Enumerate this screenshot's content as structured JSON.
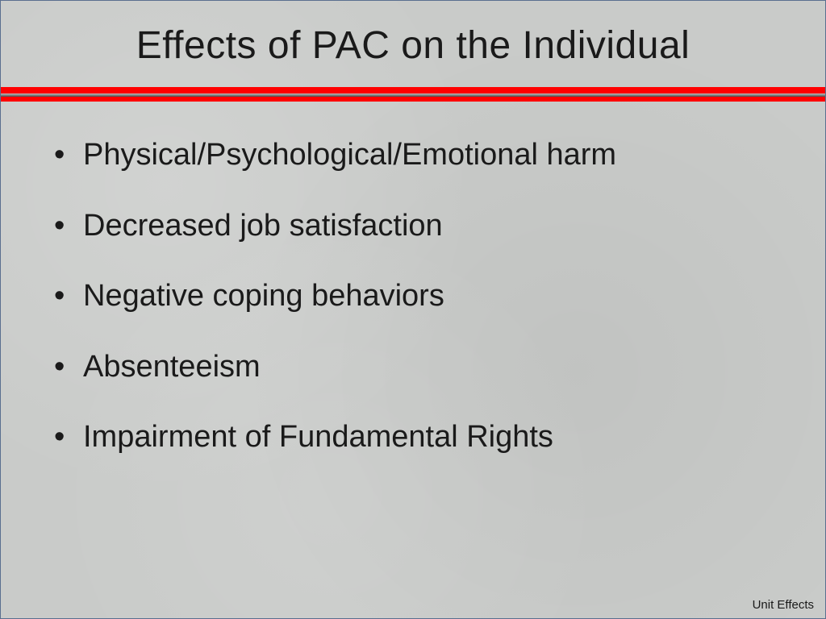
{
  "slide": {
    "title": "Effects of PAC on the Individual",
    "title_fontsize": 48,
    "title_color": "#1a1a1a",
    "background_color": "#c9cbc9",
    "border_color": "#5a6f8f",
    "divider": {
      "red_color": "#ff0000",
      "red_height": 18,
      "grey_color_top": "#9a9a9a",
      "grey_color_bottom": "#6f6f6f",
      "grey_height": 4
    },
    "bullets": [
      "Physical/Psychological/Emotional harm",
      "Decreased job satisfaction",
      "Negative coping behaviors",
      "Absenteeism",
      "Impairment of Fundamental Rights"
    ],
    "bullet_fontsize": 38,
    "bullet_color": "#1a1a1a",
    "bullet_spacing": 42,
    "footer": "Unit Effects",
    "footer_fontsize": 15
  }
}
